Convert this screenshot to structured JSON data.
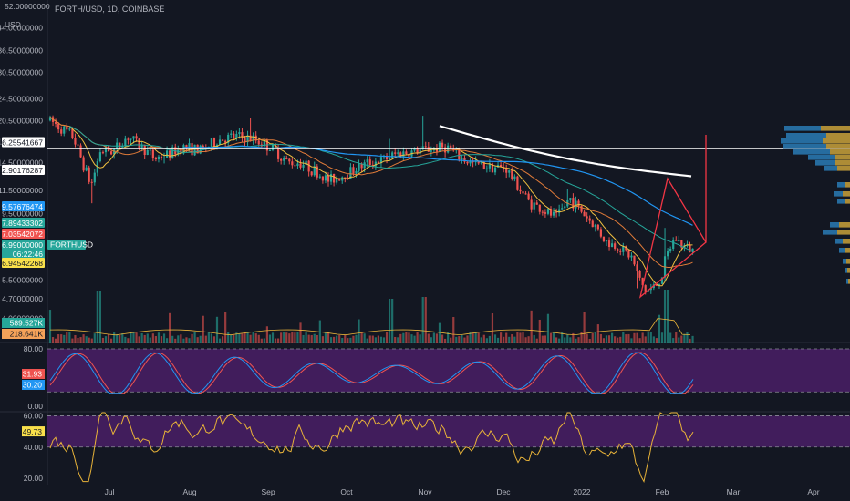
{
  "header": {
    "symbol": "FORTH/USD, 1D, COINBASE",
    "currency": "USD",
    "top_tick": "52.00000000"
  },
  "colors": {
    "background": "#131722",
    "up": "#26a69a",
    "down": "#ef5350",
    "ma_fast": "#f0c040",
    "ma_slow": "#2196f3",
    "ma_mid": "#26a69a",
    "trend_white": "#ffffff",
    "triangle": "#f23645",
    "stoch_band": "#4a1f66",
    "rsi_band": "#4a1f66",
    "rsi_line": "#e8b339",
    "stoch_k": "#2196f3",
    "stoch_d": "#ef5350",
    "vp_up": "#2a7bb5",
    "vp_down": "#c9a13a"
  },
  "chart_data": [
    {
      "type": "candlestick",
      "title": "FORTH/USD, 1D, COINBASE",
      "scale": "log",
      "ylabel": "USD",
      "x_ticks": [
        "Jul",
        "Aug",
        "Sep",
        "Oct",
        "Nov",
        "Dec",
        "2022",
        "Feb",
        "Mar",
        "Apr"
      ],
      "y_ticks": [
        "44.00000000",
        "36.50000000",
        "30.50000000",
        "24.50000000",
        "20.50000000",
        "17.25000000",
        "14.50000000",
        "11.50000000",
        "9.50000000",
        "5.50000000",
        "4.70000000",
        "4.00000000"
      ],
      "ylim": [
        3.7,
        52
      ],
      "price_labels": [
        {
          "text": "16.25541667",
          "kind": "white-line"
        },
        {
          "text": "12.90176287",
          "kind": "dark"
        },
        {
          "text": "9.57676474",
          "kind": "blue"
        },
        {
          "text": "7.89433302",
          "kind": "green"
        },
        {
          "text": "7.03542072",
          "kind": "red"
        },
        {
          "text": "6.99000000",
          "kind": "last"
        },
        {
          "text": "06:22:46",
          "kind": "last-sub"
        },
        {
          "text": "6.94542268",
          "kind": "yellow"
        }
      ],
      "last_tag": "FORTHUSD",
      "horizontal_line": 16.25541667,
      "last_price": 6.99,
      "volume_labels": [
        "589.527K",
        "218.641K"
      ]
    },
    {
      "type": "line",
      "title": "",
      "ylim": [
        0,
        80
      ],
      "y_ticks": [
        "80.00",
        "0.00"
      ],
      "series": [
        {
          "name": "",
          "last": "31.93"
        },
        {
          "name": "",
          "last": "30.20"
        }
      ],
      "bands": [
        20,
        80
      ]
    },
    {
      "type": "line",
      "title": "",
      "ylim": [
        16,
        62
      ],
      "y_ticks": [
        "60.00",
        "40.00",
        "20.00"
      ],
      "series": [
        {
          "name": "",
          "last": "49.73"
        }
      ],
      "bands": [
        40,
        60
      ]
    }
  ]
}
